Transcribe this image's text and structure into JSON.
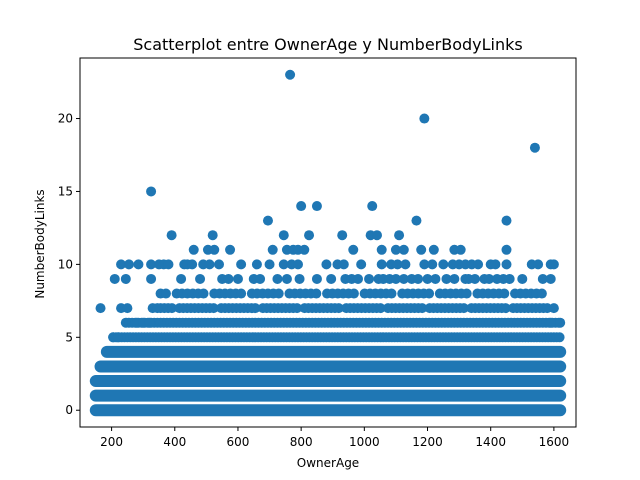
{
  "chart_data": {
    "type": "scatter",
    "title": "Scatterplot entre OwnerAge y NumberBodyLinks",
    "xlabel": "OwnerAge",
    "ylabel": "NumberBodyLinks",
    "xlim": [
      100,
      1670
    ],
    "ylim": [
      -1.15,
      24.15
    ],
    "xticks": [
      200,
      400,
      600,
      800,
      1000,
      1200,
      1400,
      1600
    ],
    "yticks": [
      0,
      5,
      10,
      15,
      20
    ],
    "grid": false,
    "color": "#1f77b4",
    "dense_bands": [
      {
        "y": 0,
        "x_range": [
          150,
          1620
        ]
      },
      {
        "y": 1,
        "x_range": [
          150,
          1620
        ]
      },
      {
        "y": 2,
        "x_range": [
          150,
          1620
        ]
      },
      {
        "y": 3,
        "x_range": [
          165,
          1620
        ]
      },
      {
        "y": 4,
        "x_range": [
          185,
          1620
        ]
      }
    ],
    "points": [
      [
        765,
        23
      ],
      [
        1190,
        20
      ],
      [
        1540,
        18
      ],
      [
        325,
        15
      ],
      [
        800,
        14
      ],
      [
        850,
        14
      ],
      [
        1025,
        14
      ],
      [
        695,
        13
      ],
      [
        1165,
        13
      ],
      [
        1450,
        13
      ],
      [
        390,
        12
      ],
      [
        520,
        12
      ],
      [
        745,
        12
      ],
      [
        825,
        12
      ],
      [
        930,
        12
      ],
      [
        1020,
        12
      ],
      [
        1040,
        12
      ],
      [
        1110,
        12
      ],
      [
        460,
        11
      ],
      [
        505,
        11
      ],
      [
        525,
        11
      ],
      [
        575,
        11
      ],
      [
        710,
        11
      ],
      [
        755,
        11
      ],
      [
        775,
        11
      ],
      [
        790,
        11
      ],
      [
        810,
        11
      ],
      [
        965,
        11
      ],
      [
        1055,
        11
      ],
      [
        1100,
        11
      ],
      [
        1125,
        11
      ],
      [
        1180,
        11
      ],
      [
        1220,
        11
      ],
      [
        1285,
        11
      ],
      [
        1305,
        11
      ],
      [
        1450,
        11
      ],
      [
        230,
        10
      ],
      [
        255,
        10
      ],
      [
        285,
        10
      ],
      [
        325,
        10
      ],
      [
        350,
        10
      ],
      [
        365,
        10
      ],
      [
        380,
        10
      ],
      [
        430,
        10
      ],
      [
        440,
        10
      ],
      [
        455,
        10
      ],
      [
        490,
        10
      ],
      [
        510,
        10
      ],
      [
        540,
        10
      ],
      [
        610,
        10
      ],
      [
        660,
        10
      ],
      [
        700,
        10
      ],
      [
        745,
        10
      ],
      [
        770,
        10
      ],
      [
        790,
        10
      ],
      [
        880,
        10
      ],
      [
        915,
        10
      ],
      [
        935,
        10
      ],
      [
        990,
        10
      ],
      [
        1055,
        10
      ],
      [
        1085,
        10
      ],
      [
        1105,
        10
      ],
      [
        1130,
        10
      ],
      [
        1190,
        10
      ],
      [
        1215,
        10
      ],
      [
        1250,
        10
      ],
      [
        1280,
        10
      ],
      [
        1300,
        10
      ],
      [
        1320,
        10
      ],
      [
        1340,
        10
      ],
      [
        1360,
        10
      ],
      [
        1400,
        10
      ],
      [
        1415,
        10
      ],
      [
        1450,
        10
      ],
      [
        1530,
        10
      ],
      [
        1550,
        10
      ],
      [
        1590,
        10
      ],
      [
        1600,
        10
      ],
      [
        210,
        9
      ],
      [
        245,
        9
      ],
      [
        325,
        9
      ],
      [
        420,
        9
      ],
      [
        480,
        9
      ],
      [
        550,
        9
      ],
      [
        570,
        9
      ],
      [
        600,
        9
      ],
      [
        650,
        9
      ],
      [
        670,
        9
      ],
      [
        725,
        9
      ],
      [
        755,
        9
      ],
      [
        795,
        9
      ],
      [
        850,
        9
      ],
      [
        895,
        9
      ],
      [
        940,
        9
      ],
      [
        960,
        9
      ],
      [
        980,
        9
      ],
      [
        1015,
        9
      ],
      [
        1045,
        9
      ],
      [
        1060,
        9
      ],
      [
        1080,
        9
      ],
      [
        1100,
        9
      ],
      [
        1125,
        9
      ],
      [
        1150,
        9
      ],
      [
        1170,
        9
      ],
      [
        1200,
        9
      ],
      [
        1225,
        9
      ],
      [
        1260,
        9
      ],
      [
        1285,
        9
      ],
      [
        1320,
        9
      ],
      [
        1330,
        9
      ],
      [
        1350,
        9
      ],
      [
        1380,
        9
      ],
      [
        1395,
        9
      ],
      [
        1420,
        9
      ],
      [
        1440,
        9
      ],
      [
        1460,
        9
      ],
      [
        1500,
        9
      ],
      [
        1565,
        9
      ],
      [
        1590,
        9
      ],
      [
        165,
        7
      ],
      [
        230,
        7
      ],
      [
        250,
        7
      ],
      [
        330,
        7
      ],
      [
        345,
        7
      ],
      [
        1600,
        7
      ],
      [
        280,
        6
      ],
      [
        300,
        6
      ],
      [
        320,
        6
      ],
      [
        1590,
        6
      ],
      [
        1620,
        6
      ],
      [
        205,
        5
      ],
      [
        220,
        5
      ]
    ],
    "row_fills": [
      {
        "y": 8,
        "x_range": [
          355,
          1580
        ],
        "step": 17
      },
      {
        "y": 7,
        "x_range": [
          355,
          1590
        ],
        "step": 12
      },
      {
        "y": 6,
        "x_range": [
          245,
          1615
        ],
        "step": 10
      },
      {
        "y": 5,
        "x_range": [
          205,
          1620
        ],
        "step": 9
      }
    ]
  }
}
